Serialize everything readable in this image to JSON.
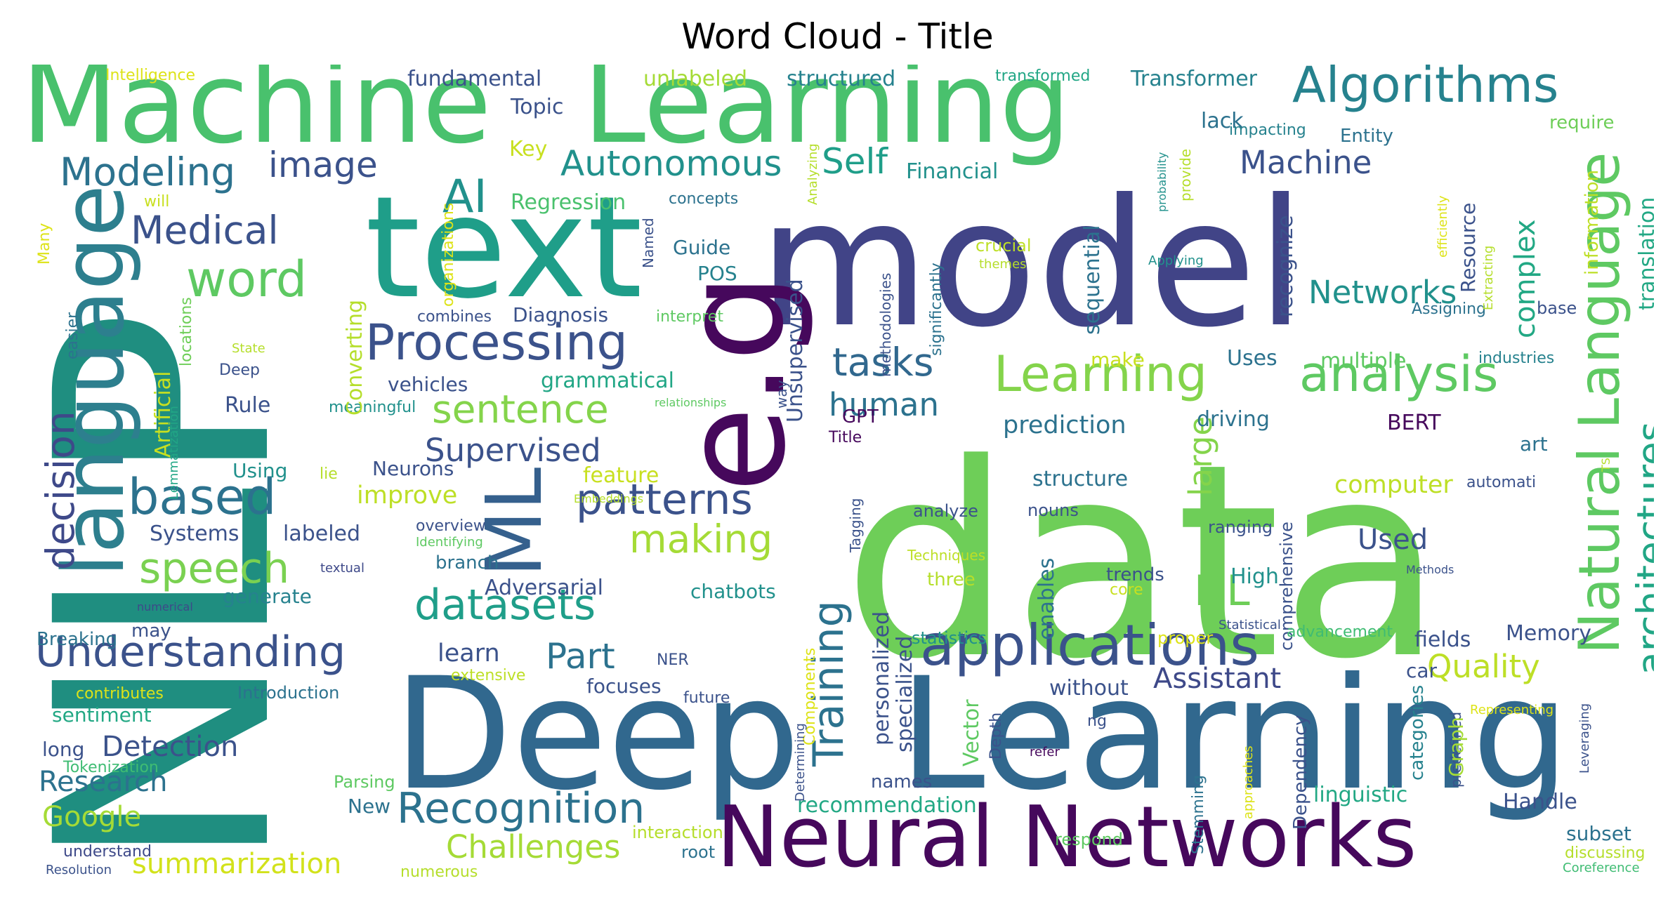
{
  "figure": {
    "title": "Word Cloud - Title"
  },
  "palette": {
    "dark_purple": "#46085c",
    "indigo": "#3d4d8a",
    "navy": "#414487",
    "blue": "#31688e",
    "teal": "#26828e",
    "green_teal": "#1f9e89",
    "green": "#35b779",
    "light_green": "#6ece58",
    "lime": "#b5de2b",
    "yellow": "#dde318",
    "gold": "#fde725"
  },
  "words": [
    {
      "text": "Machine",
      "color": "#49c16d"
    },
    {
      "text": "Learning",
      "color": "#49c16d"
    },
    {
      "text": "text",
      "color": "#1f9e89"
    },
    {
      "text": "model",
      "color": "#414487"
    },
    {
      "text": "data",
      "color": "#6ece58"
    },
    {
      "text": "NLP",
      "color": "#1f8e80"
    },
    {
      "text": "Deep",
      "color": "#31688e"
    },
    {
      "text": "Learning",
      "color": "#31688e"
    },
    {
      "text": "e.g",
      "color": "#46085c"
    },
    {
      "text": "language",
      "color": "#2d7f8e"
    },
    {
      "text": "ML",
      "color": "#35608d"
    },
    {
      "text": "Neural Networks",
      "color": "#46085c"
    },
    {
      "text": "applications",
      "color": "#3b528b"
    },
    {
      "text": "Algorithms",
      "color": "#26828e"
    },
    {
      "text": "Natural Language",
      "color": "#5ec962"
    },
    {
      "text": "Processing",
      "color": "#3b528b"
    },
    {
      "text": "Learning",
      "color": "#84d44b"
    },
    {
      "text": "analysis",
      "color": "#5ec962"
    },
    {
      "text": "architectures",
      "color": "#21a685"
    },
    {
      "text": "Recognition",
      "color": "#2c728e"
    },
    {
      "text": "Understanding",
      "color": "#3b528b"
    },
    {
      "text": "Training",
      "color": "#2c728e"
    },
    {
      "text": "datasets",
      "color": "#1f9e89"
    },
    {
      "text": "patterns",
      "color": "#3b528b"
    },
    {
      "text": "Modeling",
      "color": "#2c728e"
    },
    {
      "text": "image",
      "color": "#3b528b"
    },
    {
      "text": "word",
      "color": "#5ec962"
    },
    {
      "text": "AI",
      "color": "#21918c"
    },
    {
      "text": "Medical",
      "color": "#3b528b"
    },
    {
      "text": "based",
      "color": "#2c728e"
    },
    {
      "text": "speech",
      "color": "#7ad151"
    },
    {
      "text": "decision",
      "color": "#3e4989"
    },
    {
      "text": "Autonomous",
      "color": "#21918c"
    },
    {
      "text": "Self",
      "color": "#1f9e89"
    },
    {
      "text": "tasks",
      "color": "#31688e"
    },
    {
      "text": "human",
      "color": "#2c728e"
    },
    {
      "text": "sentence",
      "color": "#84d44b"
    },
    {
      "text": "Supervised",
      "color": "#3b528b"
    },
    {
      "text": "making",
      "color": "#a5db36"
    },
    {
      "text": "DL",
      "color": "#6ece58"
    },
    {
      "text": "Part",
      "color": "#2c728e"
    },
    {
      "text": "Machine",
      "color": "#3b528b"
    },
    {
      "text": "Networks",
      "color": "#21918c"
    },
    {
      "text": "complex",
      "color": "#22a884"
    },
    {
      "text": "large",
      "color": "#84d44b"
    },
    {
      "text": "Quality",
      "color": "#bddf26"
    },
    {
      "text": "Assistant",
      "color": "#3e4989"
    },
    {
      "text": "Challenges",
      "color": "#a5db36"
    },
    {
      "text": "summarization",
      "color": "#d2e21b"
    },
    {
      "text": "Google",
      "color": "#a5db36"
    },
    {
      "text": "Research",
      "color": "#2c728e"
    },
    {
      "text": "Detection",
      "color": "#3b528b"
    },
    {
      "text": "Transformer",
      "color": "#26828e"
    },
    {
      "text": "structured",
      "color": "#26828e"
    },
    {
      "text": "unlabeled",
      "color": "#a5db36"
    },
    {
      "text": "fundamental",
      "color": "#3b528b"
    },
    {
      "text": "Intelligence",
      "color": "#dde318"
    },
    {
      "text": "Topic",
      "color": "#3b528b"
    },
    {
      "text": "Key",
      "color": "#c8e020"
    },
    {
      "text": "lack",
      "color": "#2c728e"
    },
    {
      "text": "Regression",
      "color": "#4ac16d"
    },
    {
      "text": "Financial",
      "color": "#21918c"
    },
    {
      "text": "Entity",
      "color": "#2c728e"
    },
    {
      "text": "impacting",
      "color": "#26828e"
    },
    {
      "text": "require",
      "color": "#6ece58"
    },
    {
      "text": "transformed",
      "color": "#21a685"
    },
    {
      "text": "Guide",
      "color": "#2c728e"
    },
    {
      "text": "POS",
      "color": "#26828e"
    },
    {
      "text": "concepts",
      "color": "#2c728e"
    },
    {
      "text": "combines",
      "color": "#3b528b"
    },
    {
      "text": "Diagnosis",
      "color": "#3b528b"
    },
    {
      "text": "interpret",
      "color": "#5ec962"
    },
    {
      "text": "vehicles",
      "color": "#3b528b"
    },
    {
      "text": "grammatical",
      "color": "#21a685"
    },
    {
      "text": "Rule",
      "color": "#3b528b"
    },
    {
      "text": "Deep",
      "color": "#3b528b"
    },
    {
      "text": "State",
      "color": "#b5de2b"
    },
    {
      "text": "meaningful",
      "color": "#21918c"
    },
    {
      "text": "Converting",
      "color": "#b5de2b"
    },
    {
      "text": "Artificial",
      "color": "#c8e020"
    },
    {
      "text": "Lemmatization",
      "color": "#21a685"
    },
    {
      "text": "locations",
      "color": "#6ece58"
    },
    {
      "text": "easier",
      "color": "#2c728e"
    },
    {
      "text": "Many",
      "color": "#dde318"
    },
    {
      "text": "will",
      "color": "#c8e020"
    },
    {
      "text": "organizations",
      "color": "#dde318"
    },
    {
      "text": "Using",
      "color": "#21918c"
    },
    {
      "text": "lie",
      "color": "#b5de2b"
    },
    {
      "text": "Neurons",
      "color": "#3b528b"
    },
    {
      "text": "improve",
      "color": "#bddf26"
    },
    {
      "text": "feature",
      "color": "#c8e020"
    },
    {
      "text": "Systems",
      "color": "#3b528b"
    },
    {
      "text": "labeled",
      "color": "#3b528b"
    },
    {
      "text": "overview",
      "color": "#3b528b"
    },
    {
      "text": "Identifying",
      "color": "#5ec962"
    },
    {
      "text": "Embeddings",
      "color": "#b5de2b"
    },
    {
      "text": "branch",
      "color": "#2c728e"
    },
    {
      "text": "textual",
      "color": "#3e4989"
    },
    {
      "text": "generate",
      "color": "#26828e"
    },
    {
      "text": "Adversarial",
      "color": "#3b528b"
    },
    {
      "text": "chatbots",
      "color": "#21918c"
    },
    {
      "text": "numerical",
      "color": "#3e4989"
    },
    {
      "text": "Breaking",
      "color": "#2c728e"
    },
    {
      "text": "may",
      "color": "#3b528b"
    },
    {
      "text": "learn",
      "color": "#3b528b"
    },
    {
      "text": "focuses",
      "color": "#3b528b"
    },
    {
      "text": "NER",
      "color": "#3b528b"
    },
    {
      "text": "extensive",
      "color": "#bddf26"
    },
    {
      "text": "contributes",
      "color": "#dde318"
    },
    {
      "text": "Introduction",
      "color": "#2c728e"
    },
    {
      "text": "future",
      "color": "#3b528b"
    },
    {
      "text": "sentiment",
      "color": "#22a884"
    },
    {
      "text": "long",
      "color": "#3b528b"
    },
    {
      "text": "Tokenization",
      "color": "#3fbc73"
    },
    {
      "text": "Parsing",
      "color": "#5ec962"
    },
    {
      "text": "New",
      "color": "#2c728e"
    },
    {
      "text": "understand",
      "color": "#3e4989"
    },
    {
      "text": "Resolution",
      "color": "#3b528b"
    },
    {
      "text": "numerous",
      "color": "#b5de2b"
    },
    {
      "text": "root",
      "color": "#2c728e"
    },
    {
      "text": "interaction",
      "color": "#b5de2b"
    },
    {
      "text": "recommendation",
      "color": "#22a884"
    },
    {
      "text": "names",
      "color": "#3b528b"
    },
    {
      "text": "respond",
      "color": "#5ec962"
    },
    {
      "text": "personalized",
      "color": "#3b528b"
    },
    {
      "text": "specialized",
      "color": "#3b528b"
    },
    {
      "text": "Components",
      "color": "#dde318"
    },
    {
      "text": "Determining",
      "color": "#3b528b"
    },
    {
      "text": "statistics",
      "color": "#21918c"
    },
    {
      "text": "Vector",
      "color": "#5ec962"
    },
    {
      "text": "Depth",
      "color": "#3b528b"
    },
    {
      "text": "refer",
      "color": "#46085c"
    },
    {
      "text": "ng",
      "color": "#3b528b"
    },
    {
      "text": "without",
      "color": "#3b528b"
    },
    {
      "text": "enables",
      "color": "#2c728e"
    },
    {
      "text": "proper",
      "color": "#dde318"
    },
    {
      "text": "core",
      "color": "#c8e020"
    },
    {
      "text": "trends",
      "color": "#3b528b"
    },
    {
      "text": "three",
      "color": "#b5de2b"
    },
    {
      "text": "Techniques",
      "color": "#bddf26"
    },
    {
      "text": "analyze",
      "color": "#3b528b"
    },
    {
      "text": "nouns",
      "color": "#3b528b"
    },
    {
      "text": "structure",
      "color": "#2c728e"
    },
    {
      "text": "ranging",
      "color": "#3b528b"
    },
    {
      "text": "comprehensive",
      "color": "#3b528b"
    },
    {
      "text": "High",
      "color": "#21918c"
    },
    {
      "text": "Used",
      "color": "#3b528b"
    },
    {
      "text": "computer",
      "color": "#bddf26"
    },
    {
      "text": "Statistical",
      "color": "#3b528b"
    },
    {
      "text": "Methods",
      "color": "#3b528b"
    },
    {
      "text": "advancement",
      "color": "#3fbc73"
    },
    {
      "text": "fields",
      "color": "#3b528b"
    },
    {
      "text": "Memory",
      "color": "#3b528b"
    },
    {
      "text": "Stemming",
      "color": "#2c728e"
    },
    {
      "text": "Dependency",
      "color": "#3b528b"
    },
    {
      "text": "approaches",
      "color": "#dde318"
    },
    {
      "text": "linguistic",
      "color": "#22a884"
    },
    {
      "text": "Handle",
      "color": "#3b528b"
    },
    {
      "text": "subset",
      "color": "#2c728e"
    },
    {
      "text": "discussing",
      "color": "#b5de2b"
    },
    {
      "text": "Coreference",
      "color": "#3fbc73"
    },
    {
      "text": "categories",
      "color": "#26828e"
    },
    {
      "text": "predefined",
      "color": "#3b528b"
    },
    {
      "text": "Leveraging",
      "color": "#3b528b"
    },
    {
      "text": "Representing",
      "color": "#dde318"
    },
    {
      "text": "Graph",
      "color": "#a5db36"
    },
    {
      "text": "car",
      "color": "#3b528b"
    },
    {
      "text": "multiple",
      "color": "#5ec962"
    },
    {
      "text": "Uses",
      "color": "#2c728e"
    },
    {
      "text": "make",
      "color": "#c8e020"
    },
    {
      "text": "prediction",
      "color": "#2c728e"
    },
    {
      "text": "driving",
      "color": "#2c728e"
    },
    {
      "text": "BERT",
      "color": "#46085c"
    },
    {
      "text": "art",
      "color": "#2c728e"
    },
    {
      "text": "TS",
      "color": "#b5de2b"
    },
    {
      "text": "automati",
      "color": "#3b528b"
    },
    {
      "text": "industries",
      "color": "#26828e"
    },
    {
      "text": "Assigning",
      "color": "#2c728e"
    },
    {
      "text": "base",
      "color": "#3b528b"
    },
    {
      "text": "Resource",
      "color": "#3b528b"
    },
    {
      "text": "Extracting",
      "color": "#b5de2b"
    },
    {
      "text": "efficiently",
      "color": "#dde318"
    },
    {
      "text": "information",
      "color": "#bddf26"
    },
    {
      "text": "translation",
      "color": "#22a884"
    },
    {
      "text": "recognize",
      "color": "#3b528b"
    },
    {
      "text": "sequential",
      "color": "#2c728e"
    },
    {
      "text": "Unsupervised",
      "color": "#3b528b"
    },
    {
      "text": "methodologies",
      "color": "#3b528b"
    },
    {
      "text": "significantly",
      "color": "#2c728e"
    },
    {
      "text": "Named",
      "color": "#3b528b"
    },
    {
      "text": "crucial",
      "color": "#bddf26"
    },
    {
      "text": "themes",
      "color": "#b5de2b"
    },
    {
      "text": "Applying",
      "color": "#21918c"
    },
    {
      "text": "way",
      "color": "#3b528b"
    },
    {
      "text": "relationships",
      "color": "#5ec962"
    },
    {
      "text": "GPT",
      "color": "#46085c"
    },
    {
      "text": "Title",
      "color": "#46085c"
    },
    {
      "text": "Tagging",
      "color": "#3b528b"
    },
    {
      "text": "Analyzing",
      "color": "#b5de2b"
    },
    {
      "text": "probability",
      "color": "#21918c"
    },
    {
      "text": "provide",
      "color": "#b5de2b"
    }
  ]
}
